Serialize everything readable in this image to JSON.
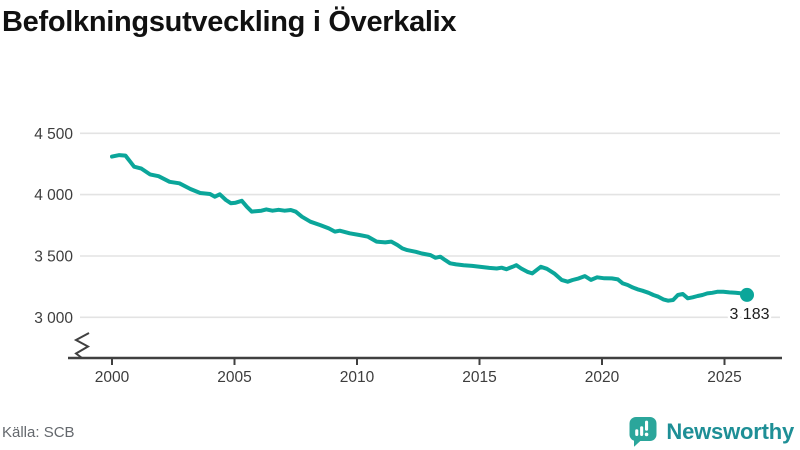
{
  "title": "Befolkningsutveckling i Överkalix",
  "source": {
    "label": "Källa: SCB"
  },
  "branding": {
    "name": "Newsworthy",
    "icon": "newsworthy-speech-bubble-barchart-icon",
    "icon_color": "#2ba69b",
    "text_color": "#1e8f96"
  },
  "colors": {
    "line": "#0ba69a",
    "grid": "#e3e3e3",
    "axis": "#404040",
    "tick_text": "#3d3d3d",
    "title": "#111111",
    "end_label": "#1d1d1d",
    "source_text": "#64686d"
  },
  "chart_data": {
    "type": "line",
    "title": "Befolkningsutveckling i Överkalix",
    "xlabel": "",
    "ylabel": "",
    "grid": "horizontal",
    "legend": "none",
    "y_axis_break": true,
    "xlim_years": [
      1998.2,
      2027.3
    ],
    "ylim": [
      3000,
      4500
    ],
    "x_ticks": [
      {
        "value": 2000,
        "label": "2000"
      },
      {
        "value": 2005,
        "label": "2005"
      },
      {
        "value": 2010,
        "label": "2010"
      },
      {
        "value": 2015,
        "label": "2015"
      },
      {
        "value": 2020,
        "label": "2020"
      },
      {
        "value": 2025,
        "label": "2025"
      }
    ],
    "y_ticks": [
      {
        "value": 4500,
        "label": "4 500"
      },
      {
        "value": 4000,
        "label": "4 000"
      },
      {
        "value": 3500,
        "label": "3 500"
      },
      {
        "value": 3000,
        "label": "3 000"
      }
    ],
    "end_point": {
      "label": "3 183",
      "value": 3183
    },
    "series": [
      {
        "name": "Befolkning",
        "color": "#0ba69a",
        "points": [
          [
            2000.0,
            4310
          ],
          [
            2000.3,
            4322
          ],
          [
            2000.55,
            4318
          ],
          [
            2000.9,
            4228
          ],
          [
            2001.2,
            4212
          ],
          [
            2001.55,
            4165
          ],
          [
            2001.9,
            4150
          ],
          [
            2002.35,
            4105
          ],
          [
            2002.75,
            4092
          ],
          [
            2003.2,
            4046
          ],
          [
            2003.6,
            4013
          ],
          [
            2004.0,
            4005
          ],
          [
            2004.2,
            3983
          ],
          [
            2004.4,
            4003
          ],
          [
            2004.65,
            3956
          ],
          [
            2004.85,
            3930
          ],
          [
            2005.05,
            3934
          ],
          [
            2005.3,
            3950
          ],
          [
            2005.5,
            3902
          ],
          [
            2005.7,
            3862
          ],
          [
            2006.1,
            3869
          ],
          [
            2006.3,
            3880
          ],
          [
            2006.55,
            3869
          ],
          [
            2006.8,
            3876
          ],
          [
            2007.05,
            3869
          ],
          [
            2007.3,
            3875
          ],
          [
            2007.5,
            3861
          ],
          [
            2007.75,
            3820
          ],
          [
            2008.1,
            3779
          ],
          [
            2008.5,
            3752
          ],
          [
            2008.85,
            3725
          ],
          [
            2009.1,
            3699
          ],
          [
            2009.3,
            3706
          ],
          [
            2009.7,
            3685
          ],
          [
            2010.1,
            3671
          ],
          [
            2010.45,
            3657
          ],
          [
            2010.8,
            3617
          ],
          [
            2011.15,
            3611
          ],
          [
            2011.4,
            3617
          ],
          [
            2011.65,
            3589
          ],
          [
            2011.85,
            3562
          ],
          [
            2012.05,
            3548
          ],
          [
            2012.4,
            3534
          ],
          [
            2012.65,
            3520
          ],
          [
            2013.0,
            3507
          ],
          [
            2013.2,
            3485
          ],
          [
            2013.4,
            3494
          ],
          [
            2013.6,
            3466
          ],
          [
            2013.8,
            3440
          ],
          [
            2014.05,
            3431
          ],
          [
            2014.35,
            3425
          ],
          [
            2014.7,
            3419
          ],
          [
            2015.05,
            3411
          ],
          [
            2015.4,
            3403
          ],
          [
            2015.7,
            3398
          ],
          [
            2015.9,
            3404
          ],
          [
            2016.1,
            3392
          ],
          [
            2016.35,
            3412
          ],
          [
            2016.5,
            3425
          ],
          [
            2016.7,
            3398
          ],
          [
            2016.95,
            3371
          ],
          [
            2017.15,
            3358
          ],
          [
            2017.5,
            3412
          ],
          [
            2017.75,
            3395
          ],
          [
            2018.05,
            3358
          ],
          [
            2018.35,
            3305
          ],
          [
            2018.6,
            3290
          ],
          [
            2018.8,
            3304
          ],
          [
            2019.05,
            3317
          ],
          [
            2019.3,
            3336
          ],
          [
            2019.55,
            3305
          ],
          [
            2019.8,
            3326
          ],
          [
            2020.1,
            3318
          ],
          [
            2020.4,
            3317
          ],
          [
            2020.65,
            3309
          ],
          [
            2020.85,
            3276
          ],
          [
            2021.05,
            3263
          ],
          [
            2021.25,
            3244
          ],
          [
            2021.45,
            3228
          ],
          [
            2021.65,
            3217
          ],
          [
            2021.9,
            3200
          ],
          [
            2022.1,
            3182
          ],
          [
            2022.3,
            3168
          ],
          [
            2022.5,
            3146
          ],
          [
            2022.7,
            3135
          ],
          [
            2022.9,
            3141
          ],
          [
            2023.1,
            3182
          ],
          [
            2023.3,
            3190
          ],
          [
            2023.5,
            3155
          ],
          [
            2023.7,
            3163
          ],
          [
            2023.9,
            3174
          ],
          [
            2024.1,
            3182
          ],
          [
            2024.3,
            3195
          ],
          [
            2024.5,
            3200
          ],
          [
            2024.7,
            3208
          ],
          [
            2024.95,
            3208
          ],
          [
            2025.2,
            3203
          ],
          [
            2025.45,
            3200
          ],
          [
            2025.7,
            3195
          ],
          [
            2025.92,
            3183
          ]
        ]
      }
    ]
  }
}
